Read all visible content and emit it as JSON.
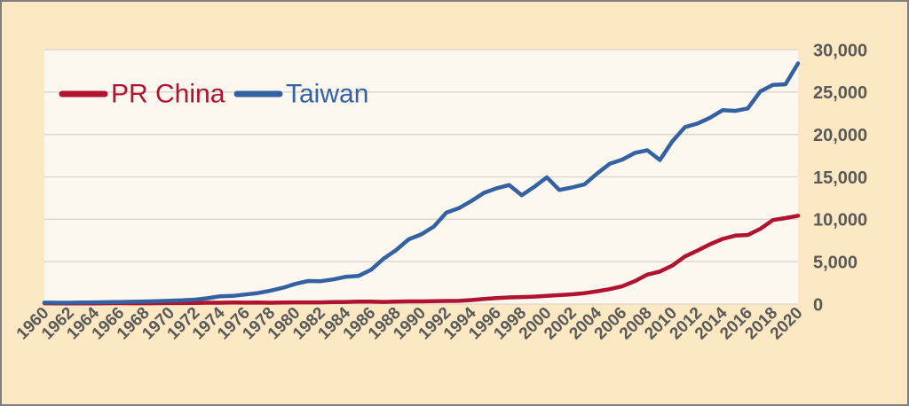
{
  "chart_data": {
    "type": "line",
    "title": "",
    "xlabel": "",
    "ylabel": "",
    "x": [
      1960,
      1961,
      1962,
      1963,
      1964,
      1965,
      1966,
      1967,
      1968,
      1969,
      1970,
      1971,
      1972,
      1973,
      1974,
      1975,
      1976,
      1977,
      1978,
      1979,
      1980,
      1981,
      1982,
      1983,
      1984,
      1985,
      1986,
      1987,
      1988,
      1989,
      1990,
      1991,
      1992,
      1993,
      1994,
      1995,
      1996,
      1997,
      1998,
      1999,
      2000,
      2001,
      2002,
      2003,
      2004,
      2005,
      2006,
      2007,
      2008,
      2009,
      2010,
      2011,
      2012,
      2013,
      2014,
      2015,
      2016,
      2017,
      2018,
      2019,
      2020
    ],
    "series": [
      {
        "name": "PR China",
        "color": "#B0122F",
        "values": [
          90,
          76,
          71,
          74,
          85,
          98,
          104,
          97,
          91,
          100,
          113,
          119,
          132,
          157,
          160,
          178,
          165,
          185,
          156,
          184,
          195,
          197,
          203,
          225,
          251,
          294,
          282,
          252,
          284,
          311,
          318,
          333,
          366,
          377,
          473,
          610,
          709,
          782,
          829,
          873,
          959,
          1053,
          1149,
          1289,
          1509,
          1753,
          2099,
          2694,
          3468,
          3832,
          4550,
          5618,
          6317,
          7051,
          7679,
          8067,
          8148,
          8879,
          9905,
          10144,
          10409
        ]
      },
      {
        "name": "Taiwan",
        "color": "#3361A2",
        "values": [
          163,
          152,
          161,
          178,
          202,
          217,
          237,
          267,
          304,
          345,
          393,
          443,
          522,
          695,
          920,
          964,
          1132,
          1301,
          1577,
          1920,
          2385,
          2720,
          2699,
          2903,
          3224,
          3314,
          4036,
          5350,
          6370,
          7626,
          8216,
          9136,
          10778,
          11310,
          12160,
          13119,
          13650,
          14040,
          12840,
          13819,
          14941,
          13448,
          13750,
          14120,
          15388,
          16532,
          17026,
          17814,
          18131,
          16988,
          19197,
          20866,
          21295,
          21973,
          22874,
          22780,
          23071,
          25080,
          25838,
          25908,
          28383
        ]
      }
    ],
    "ylim": [
      0,
      30000
    ],
    "y_tick_values": [
      0,
      5000,
      10000,
      15000,
      20000,
      25000,
      30000
    ],
    "y_tick_labels": [
      "0",
      "5,000",
      "10,000",
      "15,000",
      "20,000",
      "25,000",
      "30,000"
    ],
    "y_axis_side": "right",
    "x_tick_interval_years": 2,
    "x_tick_rotation_deg": -45,
    "grid": "horizontal",
    "legend_position": "inside-top-left",
    "legend_text_colored_by_series": true
  },
  "colors": {
    "canvas_bg": "#FCE9C3",
    "plot_bg": "#FCF8F0",
    "gridline": "#D9D6CF",
    "frame_border": "#7E7E7E",
    "tick_text": "#595959"
  }
}
